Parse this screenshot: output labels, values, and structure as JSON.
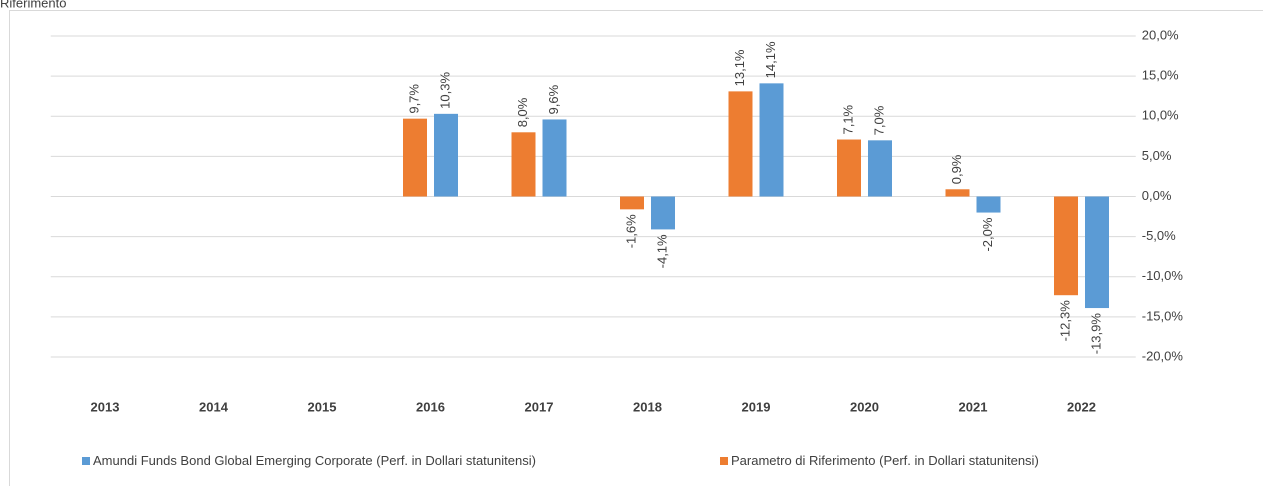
{
  "chart_data": {
    "type": "bar",
    "title": "Riferimento",
    "categories": [
      "2013",
      "2014",
      "2015",
      "2016",
      "2017",
      "2018",
      "2019",
      "2020",
      "2021",
      "2022"
    ],
    "series": [
      {
        "name": "Parametro di Riferimento (Perf. in Dollari statunitensi)",
        "color": "#ed7d31",
        "values": [
          null,
          null,
          null,
          9.7,
          8.0,
          -1.6,
          13.1,
          7.1,
          0.9,
          -12.3
        ],
        "value_labels": [
          null,
          null,
          null,
          "9,7%",
          "8,0%",
          "-1,6%",
          "13,1%",
          "7,1%",
          "0,9%",
          "-12,3%"
        ]
      },
      {
        "name": "Amundi Funds Bond Global Emerging Corporate (Perf. in Dollari statunitensi)",
        "color": "#5b9bd5",
        "values": [
          null,
          null,
          null,
          10.3,
          9.6,
          -4.1,
          14.1,
          7.0,
          -2.0,
          -13.9
        ],
        "value_labels": [
          null,
          null,
          null,
          "10,3%",
          "9,6%",
          "-4,1%",
          "14,1%",
          "7,0%",
          "-2,0%",
          "-13,9%"
        ]
      }
    ],
    "ylim": [
      -20,
      20
    ],
    "yticks": [
      {
        "value": -20,
        "label": "-20,0%"
      },
      {
        "value": -15,
        "label": "-15,0%"
      },
      {
        "value": -10,
        "label": "-10,0%"
      },
      {
        "value": -5,
        "label": "-5,0%"
      },
      {
        "value": 0,
        "label": "0,0%"
      },
      {
        "value": 5,
        "label": "5,0%"
      },
      {
        "value": 10,
        "label": "10,0%"
      },
      {
        "value": 15,
        "label": "15,0%"
      },
      {
        "value": 20,
        "label": "20,0%"
      }
    ],
    "grid": true,
    "legend": "bottom"
  }
}
